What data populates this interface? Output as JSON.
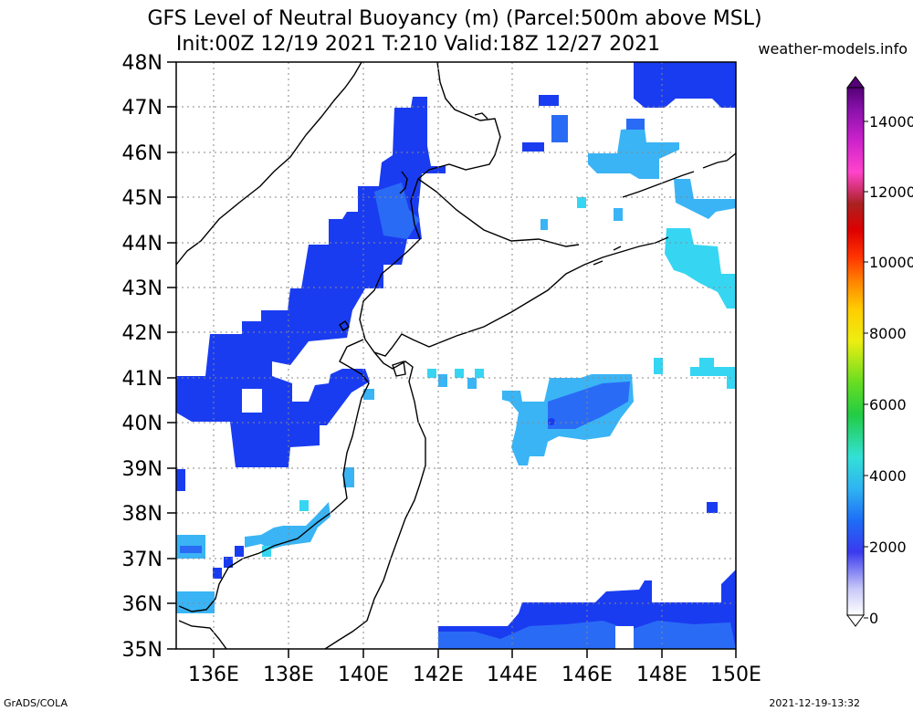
{
  "title_line1": "GFS Level of Neutral Buoyancy (m) (Parcel:500m above MSL)",
  "title_line2": "Init:00Z 12/19 2021 T:210 Valid:18Z 12/27 2021",
  "site": "weather-models.info",
  "footer_left": "GrADS/COLA",
  "footer_right": "2021-12-19-13:32",
  "lat_labels": [
    "48N",
    "47N",
    "46N",
    "45N",
    "44N",
    "43N",
    "42N",
    "41N",
    "40N",
    "39N",
    "38N",
    "37N",
    "36N",
    "35N"
  ],
  "lon_labels": [
    "136E",
    "138E",
    "140E",
    "142E",
    "144E",
    "146E",
    "148E",
    "150E"
  ],
  "colorbar_labels": [
    "14000",
    "12000",
    "10000",
    "8000",
    "6000",
    "4000",
    "2000",
    "0"
  ],
  "colors": {
    "deep_blue": "#1a3cf0",
    "mid_blue": "#2a6bf5",
    "light_blue": "#3ab4f5",
    "cyan": "#36d6f2"
  }
}
